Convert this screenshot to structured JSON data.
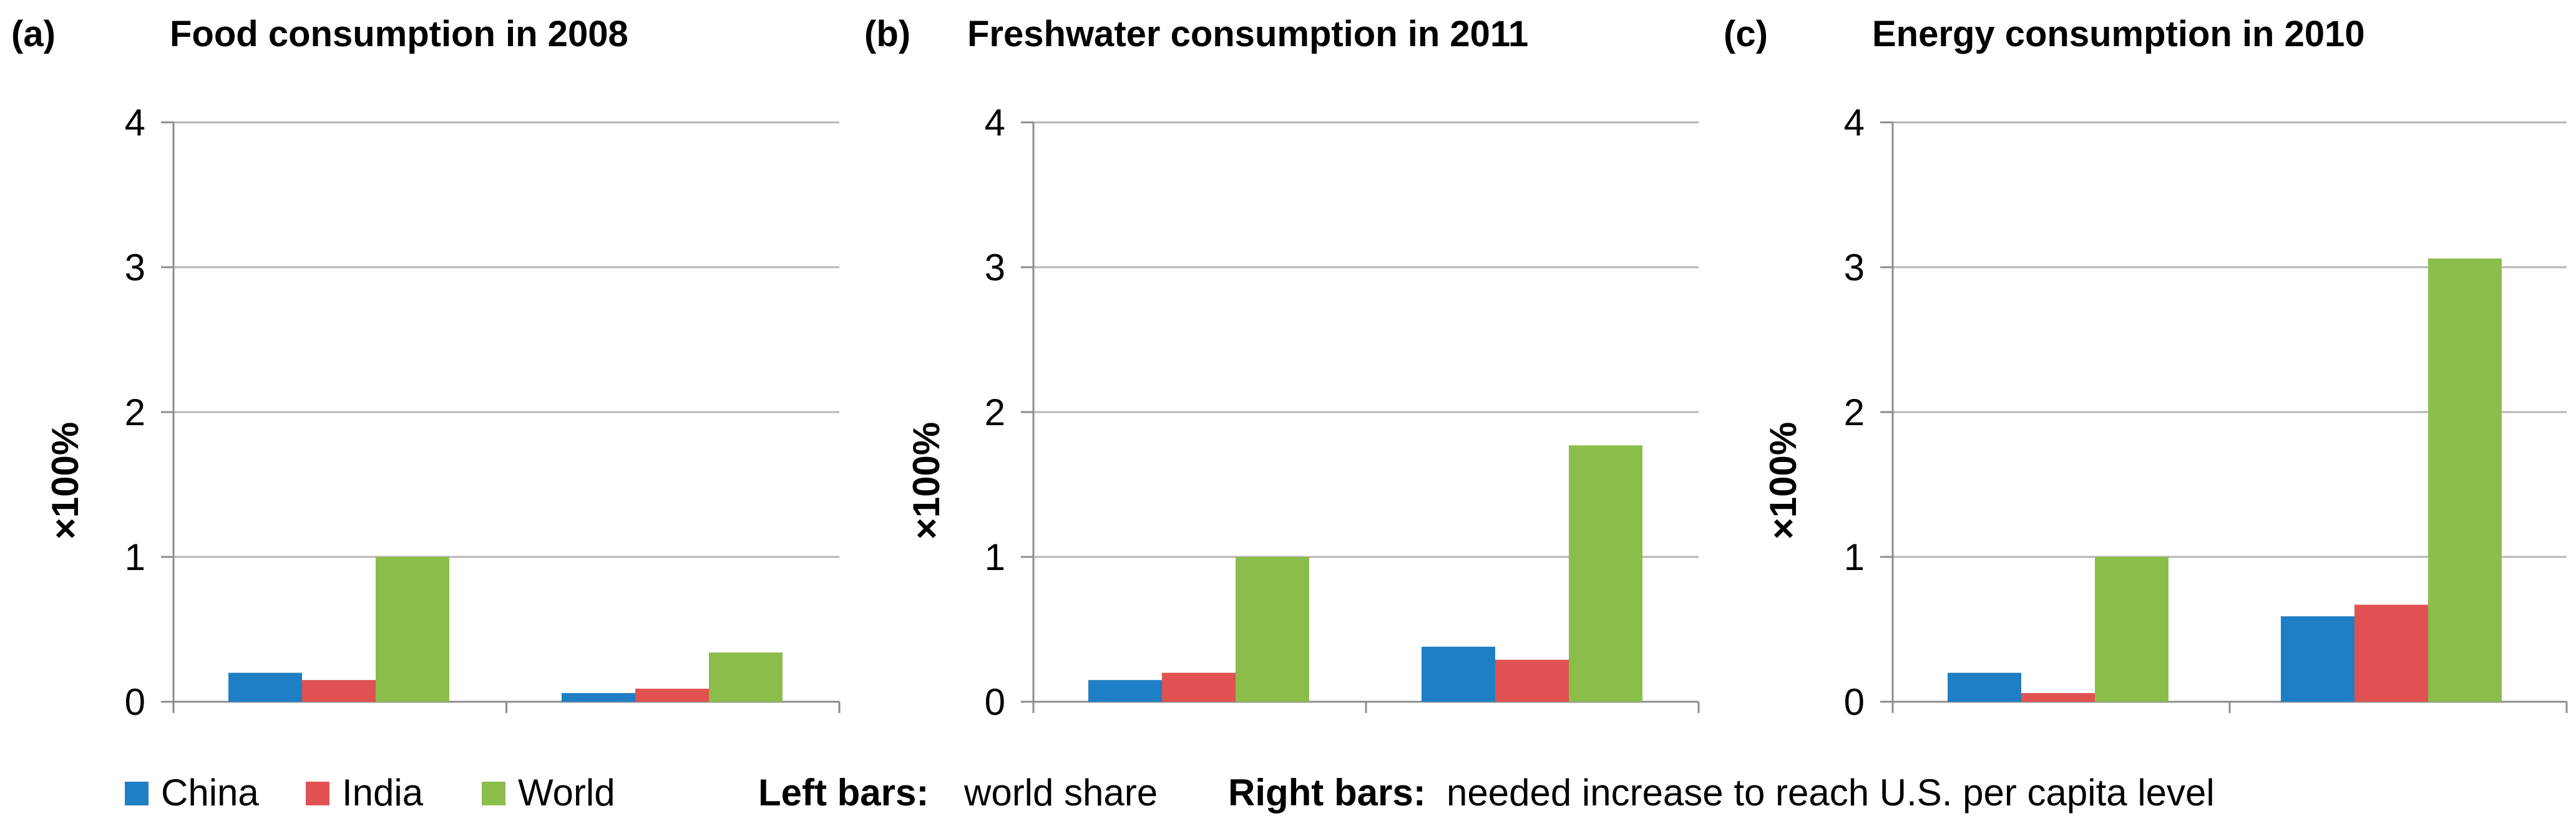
{
  "colors": {
    "china": "#1f7fc4",
    "india": "#e05252",
    "world": "#8bbd4b",
    "gridline": "#b5b5b5",
    "axis": "#8c8c8c"
  },
  "chart_data": [
    {
      "type": "bar",
      "panel": "(a)",
      "title": "Food consumption in 2008",
      "ylabel": "×100%",
      "xlabel": "",
      "ylim": [
        0,
        4
      ],
      "yticks": [
        "0",
        "1",
        "2",
        "3",
        "4"
      ],
      "grid": true,
      "categories": [
        "world share",
        "needed increase to reach U.S. per capita level"
      ],
      "series": [
        {
          "name": "China",
          "values": [
            0.2,
            0.06
          ]
        },
        {
          "name": "India",
          "values": [
            0.15,
            0.09
          ]
        },
        {
          "name": "World",
          "values": [
            1.0,
            0.34
          ]
        }
      ]
    },
    {
      "type": "bar",
      "panel": "(b)",
      "title": "Freshwater consumption in 2011",
      "ylabel": "×100%",
      "xlabel": "",
      "ylim": [
        0,
        4
      ],
      "yticks": [
        "0",
        "1",
        "2",
        "3",
        "4"
      ],
      "grid": true,
      "categories": [
        "world share",
        "needed increase to reach U.S. per capita level"
      ],
      "series": [
        {
          "name": "China",
          "values": [
            0.15,
            0.38
          ]
        },
        {
          "name": "India",
          "values": [
            0.2,
            0.29
          ]
        },
        {
          "name": "World",
          "values": [
            1.0,
            1.77
          ]
        }
      ]
    },
    {
      "type": "bar",
      "panel": "(c)",
      "title": "Energy consumption in 2010",
      "ylabel": "×100%",
      "xlabel": "",
      "ylim": [
        0,
        4
      ],
      "yticks": [
        "0",
        "1",
        "2",
        "3",
        "4"
      ],
      "grid": true,
      "categories": [
        "world share",
        "needed increase to reach U.S. per capita level"
      ],
      "series": [
        {
          "name": "China",
          "values": [
            0.2,
            0.59
          ]
        },
        {
          "name": "India",
          "values": [
            0.06,
            0.67
          ]
        },
        {
          "name": "World",
          "values": [
            1.0,
            3.06
          ]
        }
      ]
    }
  ],
  "legend": {
    "placement": "bottom-left",
    "items": [
      {
        "label": "China",
        "color": "#1f7fc4"
      },
      {
        "label": "India",
        "color": "#e05252"
      },
      {
        "label": "World",
        "color": "#8bbd4b"
      }
    ]
  },
  "note": {
    "left_label": "Left bars:",
    "left_text": "world share",
    "right_label": "Right bars:",
    "right_text": "needed increase to reach U.S. per capita level"
  }
}
